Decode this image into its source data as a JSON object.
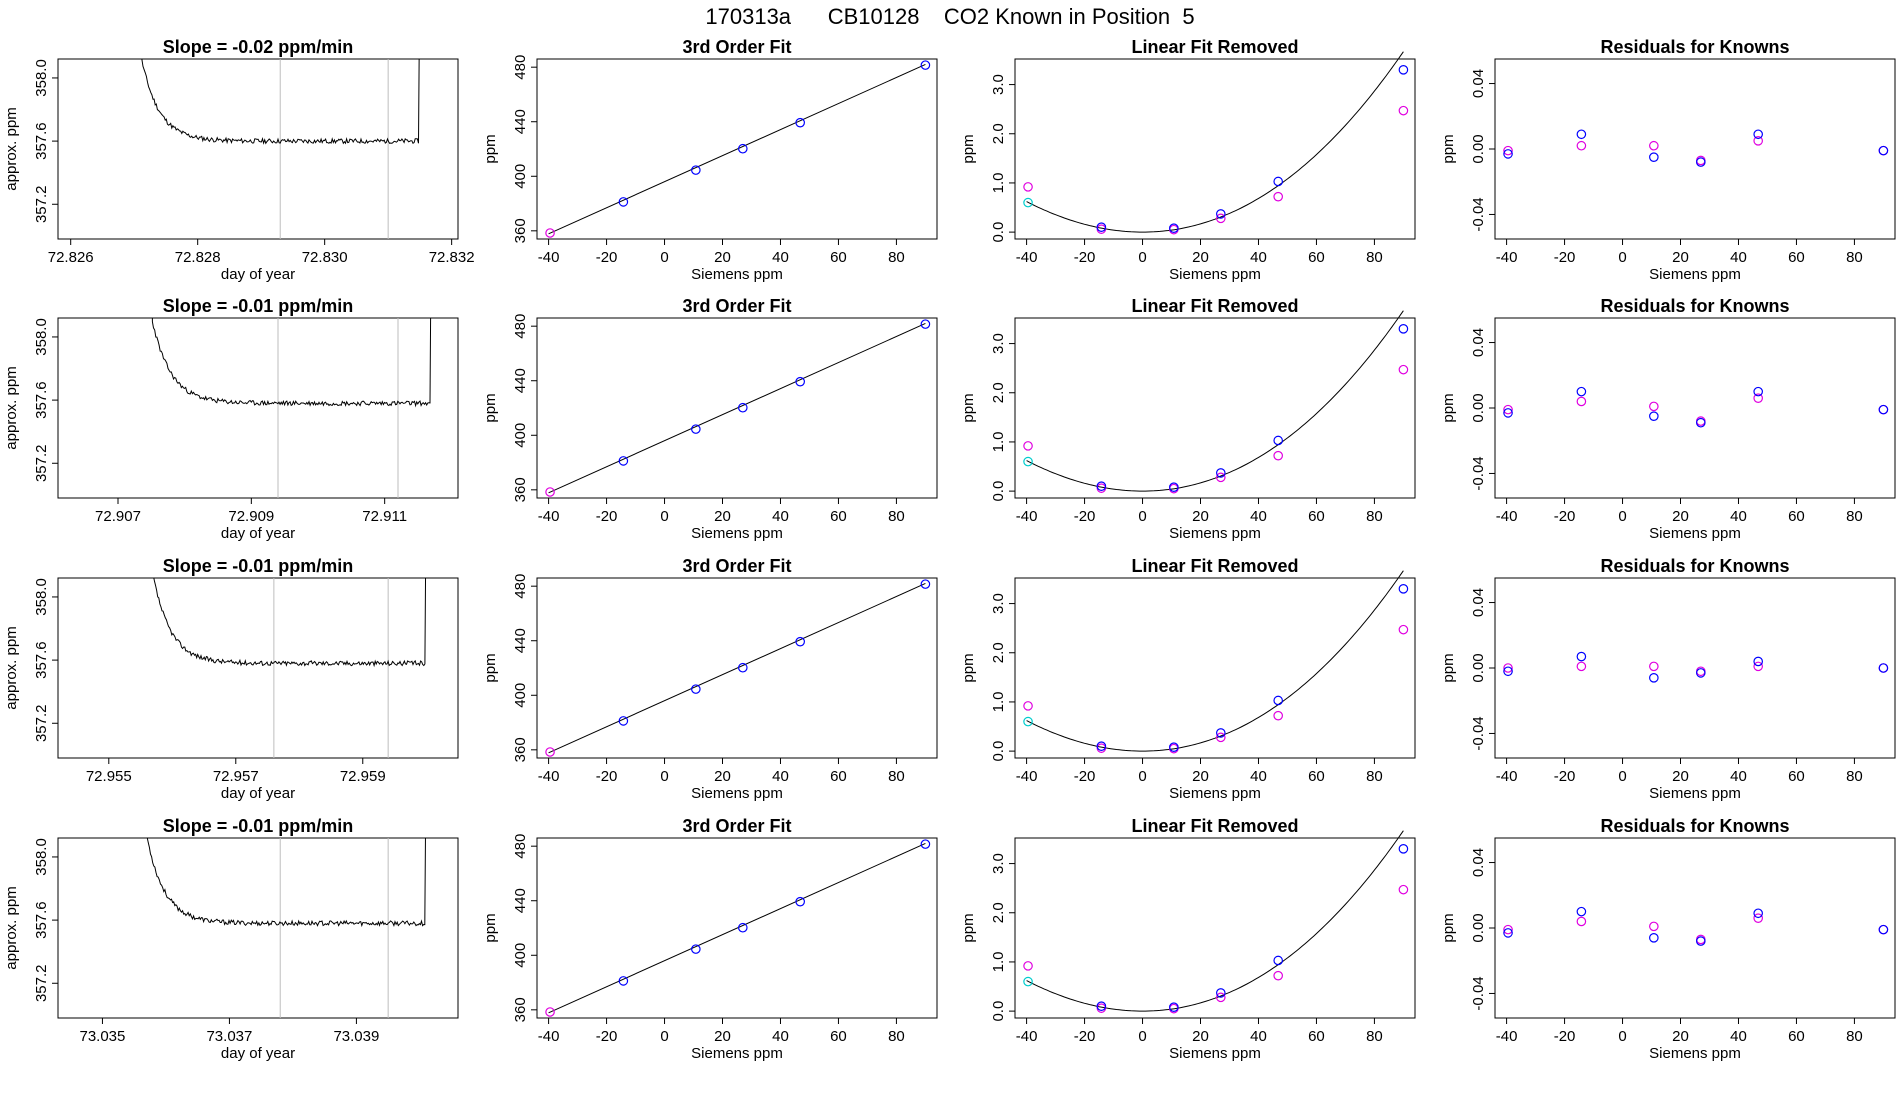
{
  "figure_title": "170313a      CB10128    CO2 Known in Position  5",
  "colors": {
    "line": "#000000",
    "vline": "#bebebe",
    "blue": "#0000ff",
    "magenta": "#e000e0",
    "cyan": "#00cdcd"
  },
  "labels": {
    "slope_ylabel": "approx. ppm",
    "slope_xlabel": "day of year",
    "fit_title": "3rd Order Fit",
    "fit_ylabel": "ppm",
    "fit_xlabel": "Siemens ppm",
    "lin_title": "Linear Fit Removed",
    "lin_ylabel": "ppm",
    "lin_xlabel": "Siemens ppm",
    "res_title": "Residuals for Knowns",
    "res_ylabel": "ppm",
    "res_xlabel": "Siemens ppm"
  },
  "chart_data": [
    {
      "row": 1,
      "slope_panel": {
        "type": "line",
        "title": "Slope =  -0.02  ppm/min",
        "xlim": [
          72.8258,
          72.8321
        ],
        "ylim": [
          356.98,
          358.12
        ],
        "x_ticks": [
          72.826,
          72.828,
          72.83,
          72.832
        ],
        "x_tick_labels": [
          "72.826",
          "72.828",
          "72.830",
          "72.832"
        ],
        "y_ticks": [
          357.2,
          357.6,
          358.0
        ],
        "y_tick_labels": [
          "357.2",
          "357.6",
          "358.0"
        ],
        "window": [
          72.8293,
          72.831
        ],
        "trace": {
          "start": 72.8271,
          "end": 72.8315,
          "settle": 357.6,
          "seed": 11
        }
      },
      "fit_panel": {
        "type": "scatter",
        "title": "3rd Order Fit",
        "x": [
          -39.5,
          -14.2,
          10.8,
          27.0,
          46.8,
          90.0
        ],
        "y": [
          358.4,
          381.2,
          404.5,
          420.2,
          439.3,
          481.5
        ],
        "fit_line": [
          [
            -40,
            357.8
          ],
          [
            90,
            482.0
          ]
        ]
      },
      "lin_panel": {
        "type": "scatter",
        "title": "Linear Fit Removed",
        "blue_x": [
          -14.2,
          10.8,
          27.0,
          46.8,
          90.0
        ],
        "blue_y": [
          0.1,
          0.08,
          0.37,
          1.03,
          3.3
        ],
        "magenta_x": [
          -39.5,
          -14.2,
          10.8,
          27.0,
          46.8,
          90.0
        ],
        "magenta_y": [
          0.92,
          0.06,
          0.05,
          0.28,
          0.72,
          2.47
        ],
        "cyan_x": [
          -39.5
        ],
        "cyan_y": [
          0.6
        ]
      },
      "res_panel": {
        "type": "scatter",
        "title": "Residuals for Knowns",
        "blue_x": [
          -39.5,
          -14.2,
          10.8,
          27.0,
          46.8,
          90.0
        ],
        "blue_y": [
          -0.003,
          0.009,
          -0.005,
          -0.008,
          0.009,
          -0.001
        ],
        "magenta_x": [
          -39.5,
          -14.2,
          10.8,
          27.0,
          46.8,
          90.0
        ],
        "magenta_y": [
          -0.001,
          0.002,
          0.002,
          -0.007,
          0.005,
          -0.001
        ]
      }
    },
    {
      "row": 2,
      "slope_panel": {
        "type": "line",
        "title": "Slope =  -0.01  ppm/min",
        "xlim": [
          72.9061,
          72.9121
        ],
        "ylim": [
          356.98,
          358.12
        ],
        "x_ticks": [
          72.907,
          72.909,
          72.911
        ],
        "x_tick_labels": [
          "72.907",
          "72.909",
          "72.911"
        ],
        "y_ticks": [
          357.2,
          357.6,
          358.0
        ],
        "y_tick_labels": [
          "357.2",
          "357.6",
          "358.0"
        ],
        "window": [
          72.9094,
          72.9112
        ],
        "trace": {
          "start": 72.9075,
          "end": 72.9117,
          "settle": 357.58,
          "seed": 23
        }
      },
      "fit_panel": {
        "type": "scatter",
        "title": "3rd Order Fit",
        "x": [
          -39.5,
          -14.2,
          10.8,
          27.0,
          46.8,
          90.0
        ],
        "y": [
          358.4,
          381.2,
          404.5,
          420.2,
          439.3,
          481.5
        ],
        "fit_line": [
          [
            -40,
            357.8
          ],
          [
            90,
            482.0
          ]
        ]
      },
      "lin_panel": {
        "type": "scatter",
        "title": "Linear Fit Removed",
        "blue_x": [
          -14.2,
          10.8,
          27.0,
          46.8,
          90.0
        ],
        "blue_y": [
          0.1,
          0.08,
          0.37,
          1.03,
          3.3
        ],
        "magenta_x": [
          -39.5,
          -14.2,
          10.8,
          27.0,
          46.8,
          90.0
        ],
        "magenta_y": [
          0.92,
          0.06,
          0.05,
          0.28,
          0.72,
          2.47
        ],
        "cyan_x": [
          -39.5
        ],
        "cyan_y": [
          0.6
        ]
      },
      "res_panel": {
        "type": "scatter",
        "title": "Residuals for Knowns",
        "blue_x": [
          -39.5,
          -14.2,
          10.8,
          27.0,
          46.8,
          90.0
        ],
        "blue_y": [
          -0.003,
          0.01,
          -0.005,
          -0.009,
          0.01,
          -0.001
        ],
        "magenta_x": [
          -39.5,
          -14.2,
          10.8,
          27.0,
          46.8,
          90.0
        ],
        "magenta_y": [
          -0.001,
          0.004,
          0.001,
          -0.008,
          0.006,
          -0.001
        ]
      }
    },
    {
      "row": 3,
      "slope_panel": {
        "type": "line",
        "title": "Slope =  -0.01  ppm/min",
        "xlim": [
          72.9542,
          72.9605
        ],
        "ylim": [
          356.98,
          358.12
        ],
        "x_ticks": [
          72.955,
          72.957,
          72.959
        ],
        "x_tick_labels": [
          "72.955",
          "72.957",
          "72.959"
        ],
        "y_ticks": [
          357.2,
          357.6,
          358.0
        ],
        "y_tick_labels": [
          "357.2",
          "357.6",
          "358.0"
        ],
        "window": [
          72.9576,
          72.9594
        ],
        "trace": {
          "start": 72.9557,
          "end": 72.96,
          "settle": 357.58,
          "seed": 37
        }
      },
      "fit_panel": {
        "type": "scatter",
        "title": "3rd Order Fit",
        "x": [
          -39.5,
          -14.2,
          10.8,
          27.0,
          46.8,
          90.0
        ],
        "y": [
          358.4,
          381.2,
          404.5,
          420.2,
          439.3,
          481.5
        ],
        "fit_line": [
          [
            -40,
            357.8
          ],
          [
            90,
            482.0
          ]
        ]
      },
      "lin_panel": {
        "type": "scatter",
        "title": "Linear Fit Removed",
        "blue_x": [
          -14.2,
          10.8,
          27.0,
          46.8,
          90.0
        ],
        "blue_y": [
          0.1,
          0.08,
          0.37,
          1.03,
          3.3
        ],
        "magenta_x": [
          -39.5,
          -14.2,
          10.8,
          27.0,
          46.8,
          90.0
        ],
        "magenta_y": [
          0.92,
          0.06,
          0.05,
          0.28,
          0.72,
          2.47
        ],
        "cyan_x": [
          -39.5
        ],
        "cyan_y": [
          0.6
        ]
      },
      "res_panel": {
        "type": "scatter",
        "title": "Residuals for Knowns",
        "blue_x": [
          -39.5,
          -14.2,
          10.8,
          27.0,
          46.8,
          90.0
        ],
        "blue_y": [
          -0.002,
          0.007,
          -0.006,
          -0.003,
          0.004,
          0.0
        ],
        "magenta_x": [
          -39.5,
          -14.2,
          10.8,
          27.0,
          46.8,
          90.0
        ],
        "magenta_y": [
          0.0,
          0.001,
          0.001,
          -0.002,
          0.001,
          0.0
        ]
      }
    },
    {
      "row": 4,
      "slope_panel": {
        "type": "line",
        "title": "Slope =  -0.01  ppm/min",
        "xlim": [
          73.0343,
          73.0406
        ],
        "ylim": [
          356.98,
          358.12
        ],
        "x_ticks": [
          73.035,
          73.037,
          73.039
        ],
        "x_tick_labels": [
          "73.035",
          "73.037",
          "73.039"
        ],
        "y_ticks": [
          357.2,
          357.6,
          358.0
        ],
        "y_tick_labels": [
          "357.2",
          "357.6",
          "358.0"
        ],
        "window": [
          73.0378,
          73.0395
        ],
        "trace": {
          "start": 73.0357,
          "end": 73.0401,
          "settle": 357.58,
          "seed": 53
        }
      },
      "fit_panel": {
        "type": "scatter",
        "title": "3rd Order Fit",
        "x": [
          -39.5,
          -14.2,
          10.8,
          27.0,
          46.8,
          90.0
        ],
        "y": [
          358.4,
          381.2,
          404.5,
          420.2,
          439.3,
          481.5
        ],
        "fit_line": [
          [
            -40,
            357.8
          ],
          [
            90,
            482.0
          ]
        ]
      },
      "lin_panel": {
        "type": "scatter",
        "title": "Linear Fit Removed",
        "blue_x": [
          -14.2,
          10.8,
          27.0,
          46.8,
          90.0
        ],
        "blue_y": [
          0.1,
          0.08,
          0.37,
          1.03,
          3.3
        ],
        "magenta_x": [
          -39.5,
          -14.2,
          10.8,
          27.0,
          46.8,
          90.0
        ],
        "magenta_y": [
          0.92,
          0.06,
          0.05,
          0.28,
          0.72,
          2.47
        ],
        "cyan_x": [
          -39.5
        ],
        "cyan_y": [
          0.6
        ]
      },
      "res_panel": {
        "type": "scatter",
        "title": "Residuals for Knowns",
        "blue_x": [
          -39.5,
          -14.2,
          10.8,
          27.0,
          46.8,
          90.0
        ],
        "blue_y": [
          -0.003,
          0.01,
          -0.006,
          -0.008,
          0.009,
          -0.001
        ],
        "magenta_x": [
          -39.5,
          -14.2,
          10.8,
          27.0,
          46.8,
          90.0
        ],
        "magenta_y": [
          -0.001,
          0.004,
          0.001,
          -0.007,
          0.006,
          -0.001
        ]
      }
    }
  ],
  "shared_axes": {
    "fit": {
      "xlim": [
        -44,
        94
      ],
      "ylim": [
        354,
        486
      ],
      "x_ticks": [
        -40,
        -20,
        0,
        20,
        40,
        60,
        80
      ],
      "x_tick_labels": [
        "-40",
        "-20",
        "0",
        "20",
        "40",
        "60",
        "80"
      ],
      "y_ticks": [
        360,
        400,
        440,
        480
      ],
      "y_tick_labels": [
        "360",
        "400",
        "440",
        "480"
      ]
    },
    "lin": {
      "xlim": [
        -44,
        94
      ],
      "ylim": [
        -0.14,
        3.52
      ],
      "x_ticks": [
        -40,
        -20,
        0,
        20,
        40,
        60,
        80
      ],
      "x_tick_labels": [
        "-40",
        "-20",
        "0",
        "20",
        "40",
        "60",
        "80"
      ],
      "y_ticks": [
        0.0,
        1.0,
        2.0,
        3.0
      ],
      "y_tick_labels": [
        "0.0",
        "1.0",
        "2.0",
        "3.0"
      ],
      "curve_coeffs": [
        0.0,
        0.0,
        0.000408,
        5e-07
      ]
    },
    "res": {
      "xlim": [
        -44,
        94
      ],
      "ylim": [
        -0.055,
        0.055
      ],
      "x_ticks": [
        -40,
        -20,
        0,
        20,
        40,
        60,
        80
      ],
      "x_tick_labels": [
        "-40",
        "-20",
        "0",
        "20",
        "40",
        "60",
        "80"
      ],
      "y_ticks": [
        -0.04,
        0.0,
        0.04
      ],
      "y_tick_labels": [
        "-0.04",
        "0.00",
        "0.04"
      ]
    }
  }
}
